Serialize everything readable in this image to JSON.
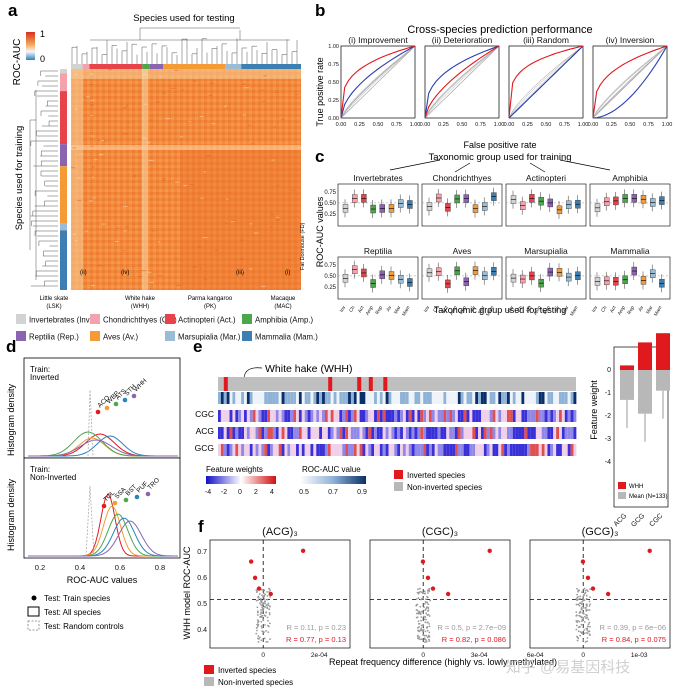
{
  "panel_a": {
    "letter": "a",
    "colorbar_title": "ROC-AUC",
    "colorbar_ticks": [
      "1",
      "0"
    ],
    "x_title": "Species used for testing",
    "y_title": "Species used for training",
    "species_marks": [
      {
        "label": "Little skate\n(LSK)"
      },
      {
        "label": "White hake\n(WHH)"
      },
      {
        "label": "Parma kangaroo\n(PK)"
      },
      {
        "label": "Macaque\n(MAC)"
      }
    ],
    "inner_marks": [
      "(ii)",
      "(iv)",
      "(iii)",
      "(i)",
      "(i)"
    ],
    "side_mark": "Fat Dormouse (FD)"
  },
  "legend": {
    "items": [
      {
        "label": "Invertebrates (Inv.)",
        "color": "#d3d3d3"
      },
      {
        "label": "Chondrichthyes (Ch.)",
        "color": "#f4a3ad"
      },
      {
        "label": "Actinopteri (Act.)",
        "color": "#e8434a"
      },
      {
        "label": "Amphibia (Amp.)",
        "color": "#4ca64c"
      },
      {
        "label": "Reptilia (Rep.)",
        "color": "#8a64ae"
      },
      {
        "label": "Aves (Av.)",
        "color": "#f49b36"
      },
      {
        "label": "Marsupialia (Mar.)",
        "color": "#9bbcd5"
      },
      {
        "label": "Mammalia (Mam.)",
        "color": "#3e7fb3"
      }
    ]
  },
  "panel_b": {
    "letter": "b",
    "title": "Cross-species prediction performance",
    "ylabel": "True positive rate",
    "xlabel": "False positive rate",
    "ticks": [
      "0.00",
      "0.25",
      "0.50",
      "0.75",
      "1.00"
    ],
    "subtitles": [
      "(i) Improvement",
      "(ii) Deterioration",
      "(iii) Random",
      "(iv) Inversion"
    ]
  },
  "panel_c": {
    "letter": "c",
    "title": "Taxonomic group used for training",
    "ylabel": "ROC-AUC values",
    "xlabel": "Taxonomic group used for testing",
    "yticks": [
      "0.75",
      "0.50",
      "0.25"
    ],
    "groups": [
      "Invertebrates",
      "Chondrichthyes",
      "Actinopteri",
      "Amphibia",
      "Reptilia",
      "Aves",
      "Marsupialia",
      "Mammalia"
    ],
    "xcats": [
      "Inv",
      "Ch",
      "Act",
      "Amp",
      "Rep",
      "Av",
      "Mar",
      "Mam"
    ]
  },
  "panel_d": {
    "letter": "d",
    "ylabel": "Histogram density",
    "xlabel": "ROC-AUC values",
    "xticks": [
      "0.2",
      "0.4",
      "0.6",
      "0.8"
    ],
    "top_label": "Train:\nInverted",
    "bottom_label": "Train:\nNon-Inverted",
    "top_species": [
      "ACO",
      "WBP",
      "ATS",
      "STH",
      "WHH"
    ],
    "bottom_species": [
      "TOL",
      "SSA",
      "BST",
      "PUF",
      "TRO"
    ],
    "legend": [
      "Test: Train species",
      "Test: All species",
      "Test: Random controls"
    ]
  },
  "panel_e": {
    "letter": "e",
    "callout": "White hake (WHH)",
    "rows": [
      "CGC",
      "ACG",
      "GCG"
    ],
    "fw_title": "Feature weights",
    "fw_ticks": [
      "-4",
      "-2",
      "0",
      "2",
      "4"
    ],
    "roc_title": "ROC-AUC value",
    "roc_ticks": [
      "0.5",
      "0.7",
      "0.9"
    ],
    "legend": [
      "Inverted species",
      "Non-inverted species"
    ],
    "bar_ylabel": "Feature weight",
    "bar_yticks": [
      "0",
      "-1",
      "-2",
      "-3",
      "-4"
    ],
    "bar_cats": [
      "ACG",
      "GCG",
      "CGC"
    ],
    "bar_legend": [
      "WHH",
      "Mean (N=133)"
    ]
  },
  "panel_f": {
    "letter": "f",
    "ylabel": "WHH model ROC-AUC",
    "xlabel": "Repeat frequency difference (highly vs. lowly methylated)",
    "yticks": [
      "0.7",
      "0.6",
      "0.5",
      "0.4"
    ],
    "legend": [
      "Inverted species",
      "Non-inverted species"
    ],
    "subplots": [
      {
        "title": "(ACG)₃",
        "xticks": [
          "0",
          "2e-04"
        ],
        "stat1": "R = 0.11, p = 0.23",
        "stat2": "R = 0.77, p = 0.13"
      },
      {
        "title": "(CGC)₃",
        "xticks": [
          "0",
          "3e-04",
          "6e-04"
        ],
        "stat1": "R = 0.5, p = 2.7e−09",
        "stat2": "R = 0.82, p = 0.086"
      },
      {
        "title": "(GCG)₃",
        "xticks": [
          "0",
          "1e-03"
        ],
        "stat1": "R = 0.39, p = 6e−06",
        "stat2": "R = 0.84, p = 0.075"
      }
    ]
  },
  "watermark": "知乎 @易基因科技"
}
